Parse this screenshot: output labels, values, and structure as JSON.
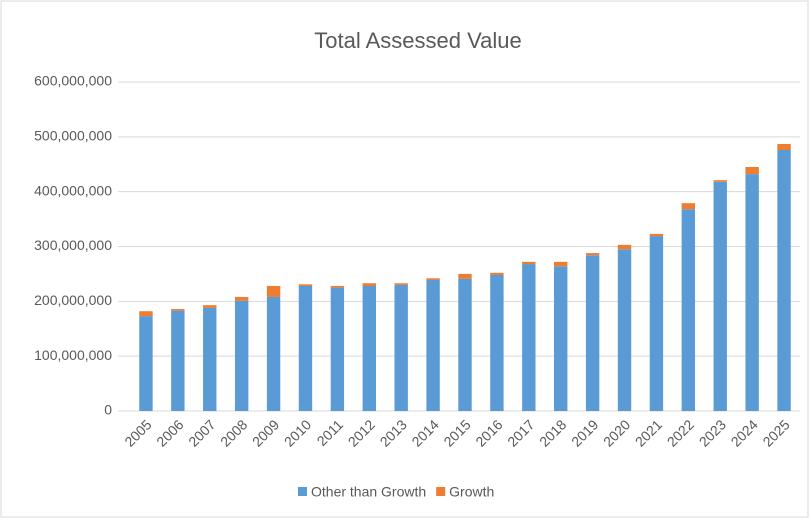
{
  "chart_data": {
    "type": "bar",
    "stacked": true,
    "title": "Total Assessed Value",
    "categories": [
      "2005",
      "2006",
      "2007",
      "2008",
      "2009",
      "2010",
      "2011",
      "2012",
      "2013",
      "2014",
      "2015",
      "2016",
      "2017",
      "2018",
      "2019",
      "2020",
      "2021",
      "2022",
      "2023",
      "2024",
      "2025"
    ],
    "series": [
      {
        "name": "Other than Growth",
        "color": "#5b9bd5",
        "values": [
          173000000,
          183000000,
          188000000,
          201000000,
          208000000,
          228000000,
          225000000,
          228000000,
          230000000,
          239000000,
          241000000,
          248000000,
          268000000,
          264000000,
          284000000,
          295000000,
          319000000,
          368000000,
          418000000,
          432000000,
          476000000
        ]
      },
      {
        "name": "Growth",
        "color": "#ed7d31",
        "values": [
          9000000,
          3000000,
          5000000,
          7000000,
          20000000,
          3000000,
          3000000,
          5000000,
          3000000,
          3000000,
          9000000,
          4000000,
          4000000,
          8000000,
          4000000,
          8000000,
          4000000,
          11000000,
          3000000,
          13000000,
          11000000
        ]
      }
    ],
    "ylim": [
      0,
      600000000
    ],
    "yticks": [
      0,
      {
        "value": 100000000,
        "label": "100,000,000"
      },
      {
        "value": 200000000,
        "label": "200,000,000"
      },
      {
        "value": 300000000,
        "label": "300,000,000"
      },
      {
        "value": 400000000,
        "label": "400,000,000"
      },
      {
        "value": 500000000,
        "label": "500,000,000"
      },
      {
        "value": 600000000,
        "label": "600,000,000"
      }
    ],
    "grid": true,
    "legend": "bottom"
  }
}
